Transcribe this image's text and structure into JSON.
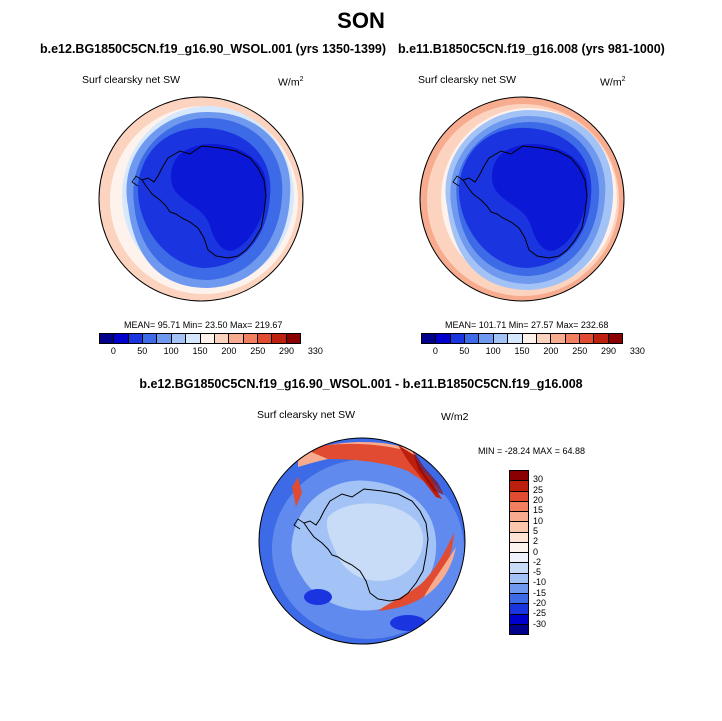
{
  "title": "SON",
  "panels": [
    {
      "case": "b.e12.BG1850C5CN.f19_g16.90_WSOL.001 (yrs 1350-1399)",
      "variable": "Surf clearsky net SW",
      "units_base": "W/m",
      "units_exp": "2",
      "stats": "MEAN= 95.71 Min= 23.50 Max= 219.67",
      "labels": [
        "0",
        "50",
        "100",
        "150",
        "200",
        "250",
        "290",
        "330"
      ],
      "colors": [
        "#00008a",
        "#0000cc",
        "#1a35e0",
        "#3d6ae6",
        "#6f98ef",
        "#a3c3f7",
        "#d6e8fd",
        "#fdf2ec",
        "#fcd3bf",
        "#f8ac8f",
        "#f27f60",
        "#e04b32",
        "#be200f",
        "#8a0000"
      ]
    },
    {
      "case": "b.e11.B1850C5CN.f19_g16.008 (yrs 981-1000)",
      "variable": "Surf clearsky net SW",
      "units_base": "W/m",
      "units_exp": "2",
      "stats": "MEAN= 101.71 Min= 27.57 Max= 232.68",
      "labels": [
        "0",
        "50",
        "100",
        "150",
        "200",
        "250",
        "290",
        "330"
      ],
      "colors": [
        "#00008a",
        "#0000cc",
        "#1a35e0",
        "#3d6ae6",
        "#6f98ef",
        "#a3c3f7",
        "#d6e8fd",
        "#fdf2ec",
        "#fcd3bf",
        "#f8ac8f",
        "#f27f60",
        "#e04b32",
        "#be200f",
        "#8a0000"
      ]
    }
  ],
  "diff": {
    "title": "b.e12.BG1850C5CN.f19_g16.90_WSOL.001 - b.e11.B1850C5CN.f19_g16.008",
    "variable": "Surf clearsky net SW",
    "units": "W/m2",
    "minmax": "MIN = -28.24 MAX = 64.88",
    "labels": [
      "30",
      "25",
      "20",
      "15",
      "10",
      "5",
      "2",
      "0",
      "-2",
      "-5",
      "-10",
      "-15",
      "-20",
      "-25",
      "-30"
    ],
    "colors": [
      "#8a0000",
      "#be200f",
      "#e04b32",
      "#f27f60",
      "#f8ac8f",
      "#fbc8ad",
      "#fde3d4",
      "#fdf4ef",
      "#eef3fb",
      "#c9dcf7",
      "#a3c3f7",
      "#6f98ef",
      "#3d6ae6",
      "#1a35e0",
      "#0000cc",
      "#00008a"
    ]
  }
}
